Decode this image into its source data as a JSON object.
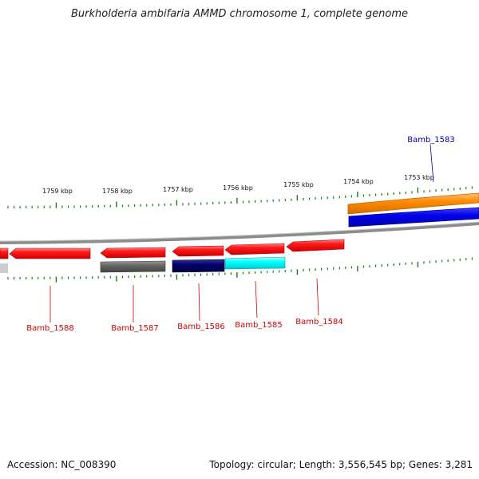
{
  "title": "Burkholderia ambifaria AMMD chromosome 1, complete genome",
  "footer": {
    "accession": "Accession: NC_008390",
    "summary": "Topology: circular; Length: 3,556,545 bp; Genes: 3,281"
  },
  "colors": {
    "tick": "#1a7a1a",
    "backbone": "#8c8c8c",
    "gene_red": "#ee1111",
    "label_red": "#cc0000",
    "label_blue": "#0000aa"
  },
  "ticks": [
    "1759 kbp",
    "1758 kbp",
    "1757 kbp",
    "1756 kbp",
    "1755 kbp",
    "1754 kbp",
    "1753 kbp"
  ],
  "genes": [
    {
      "label": "Bamb_1588",
      "color": "#ee1111",
      "strand": "forward"
    },
    {
      "label": "Bamb_1587",
      "color": "#ee1111",
      "strand": "forward"
    },
    {
      "label": "Bamb_1586",
      "color": "#ee1111",
      "strand": "forward"
    },
    {
      "label": "Bamb_1585",
      "color": "#ee1111",
      "strand": "forward"
    },
    {
      "label": "Bamb_1584",
      "color": "#ee1111",
      "strand": "forward"
    },
    {
      "label": "Bamb_1583",
      "color": "#ff8c00",
      "strand": "reverse"
    }
  ],
  "features": [
    {
      "name": "gray feature",
      "color": "#666666"
    },
    {
      "name": "navy feature",
      "color": "#000066"
    },
    {
      "name": "cyan feature",
      "color": "#00ffff"
    },
    {
      "name": "blue feature",
      "color": "#0000ee"
    }
  ]
}
